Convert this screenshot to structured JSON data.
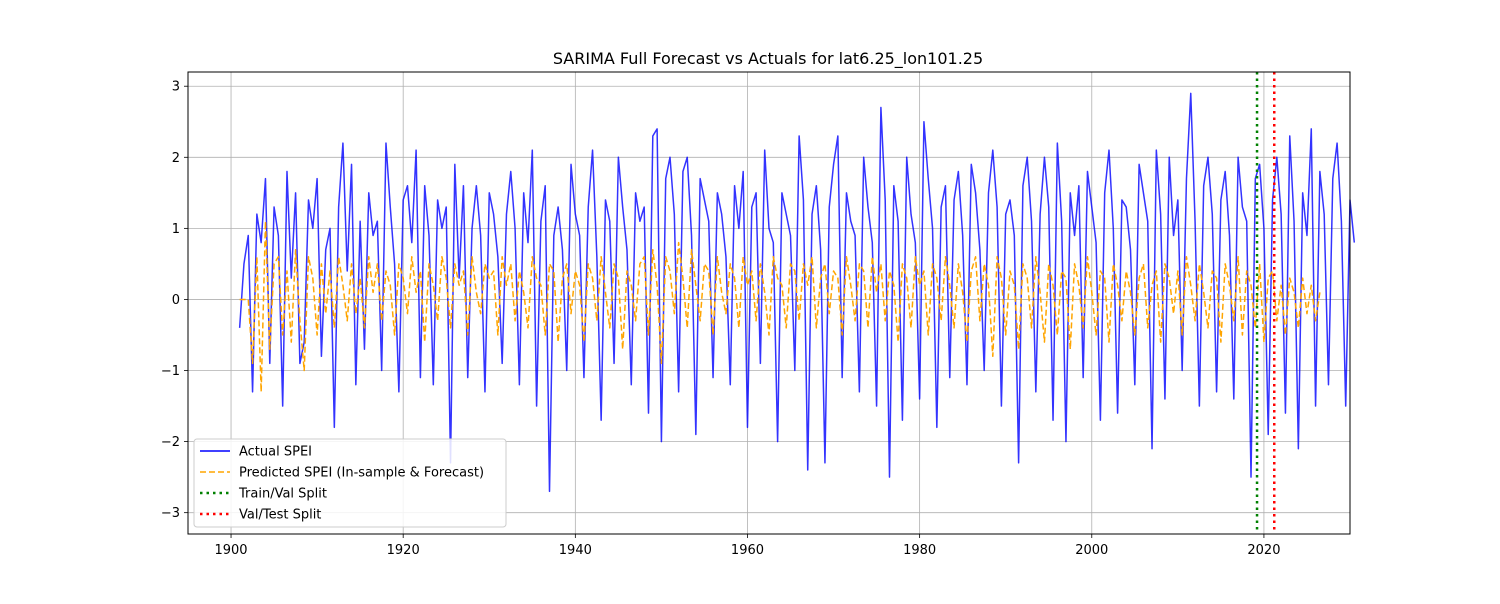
{
  "chart_data": {
    "type": "line",
    "title": "SARIMA Full Forecast vs Actuals for lat6.25_lon101.25",
    "xlabel": "",
    "ylabel": "",
    "xlim": [
      1895,
      2030
    ],
    "ylim": [
      -3.3,
      3.2
    ],
    "grid": true,
    "legend_position": "lower-left",
    "x_ticks": [
      1900,
      1920,
      1940,
      1960,
      1980,
      2000,
      2020
    ],
    "y_ticks": [
      -3,
      -2,
      -1,
      0,
      1,
      2,
      3
    ],
    "series": [
      {
        "name": "Actual SPEI",
        "style": "solid",
        "color": "#0000ff",
        "x_start": 1901.0,
        "step_years": 0.5,
        "values": [
          -0.4,
          0.5,
          0.9,
          -1.3,
          1.2,
          0.8,
          1.7,
          -0.9,
          1.3,
          0.9,
          -1.5,
          1.8,
          0.3,
          1.5,
          -0.9,
          -0.6,
          1.4,
          1.0,
          1.7,
          -0.8,
          0.7,
          1.0,
          -1.8,
          1.3,
          2.2,
          0.4,
          1.9,
          -1.2,
          1.1,
          -0.7,
          1.5,
          0.9,
          1.1,
          -1.0,
          2.2,
          1.3,
          0.5,
          -1.3,
          1.4,
          1.6,
          0.8,
          2.1,
          -1.1,
          1.6,
          0.9,
          -1.2,
          1.4,
          1.0,
          1.3,
          -2.3,
          1.9,
          0.3,
          1.6,
          -1.1,
          1.0,
          1.6,
          0.9,
          -1.3,
          1.5,
          1.2,
          0.6,
          -0.9,
          1.2,
          1.8,
          1.0,
          -1.2,
          1.5,
          0.8,
          2.1,
          -1.5,
          1.1,
          1.6,
          -2.7,
          0.9,
          1.3,
          0.7,
          -1.0,
          1.9,
          1.2,
          0.9,
          -1.1,
          1.3,
          2.1,
          0.6,
          -1.7,
          1.4,
          1.1,
          -0.9,
          2.0,
          1.3,
          0.7,
          -1.2,
          1.5,
          1.1,
          1.3,
          -1.6,
          2.3,
          2.4,
          -2.0,
          1.7,
          2.0,
          1.2,
          -1.3,
          1.8,
          2.0,
          0.9,
          -1.9,
          1.7,
          1.4,
          1.1,
          -1.1,
          1.5,
          1.2,
          0.6,
          -1.2,
          1.6,
          1.0,
          1.8,
          -1.8,
          1.3,
          1.5,
          -0.9,
          2.1,
          1.0,
          0.8,
          -2.0,
          1.5,
          1.2,
          0.9,
          -1.0,
          2.3,
          1.4,
          -2.4,
          1.2,
          1.6,
          0.7,
          -2.3,
          1.3,
          1.9,
          2.3,
          -1.1,
          1.5,
          1.1,
          0.9,
          -1.3,
          2.0,
          1.3,
          0.8,
          -1.5,
          2.7,
          1.4,
          -2.5,
          1.6,
          1.1,
          -1.7,
          2.0,
          1.2,
          0.8,
          -1.4,
          2.5,
          1.7,
          1.0,
          -1.8,
          1.3,
          1.6,
          -1.1,
          1.4,
          1.8,
          0.9,
          -1.2,
          1.9,
          1.5,
          0.7,
          -1.0,
          1.5,
          2.1,
          1.3,
          -1.5,
          1.2,
          1.4,
          0.9,
          -2.3,
          1.6,
          2.0,
          1.1,
          -1.3,
          1.2,
          2.0,
          1.3,
          -1.7,
          2.2,
          1.1,
          -2.0,
          1.5,
          0.9,
          1.6,
          -1.1,
          1.8,
          1.3,
          0.8,
          -1.7,
          1.5,
          2.1,
          1.0,
          -1.6,
          1.4,
          1.3,
          0.7,
          -1.2,
          1.9,
          1.5,
          1.1,
          -2.1,
          2.1,
          1.2,
          -1.4,
          2.0,
          0.9,
          1.4,
          -1.0,
          1.7,
          2.9,
          1.1,
          -1.5,
          1.6,
          2.0,
          1.2,
          -1.3,
          1.4,
          1.8,
          0.9,
          -1.4,
          2.0,
          1.3,
          1.1,
          -2.5,
          1.7,
          1.9,
          1.0,
          -1.9,
          1.4,
          2.0,
          1.2,
          -1.6,
          2.3,
          1.1,
          -2.1,
          1.5,
          0.9,
          2.4,
          -1.5,
          1.8,
          1.2,
          -1.2,
          1.7,
          2.2,
          1.1,
          -1.5,
          1.4,
          0.8
        ]
      },
      {
        "name": "Predicted SPEI (In-sample & Forecast)",
        "style": "dashed",
        "color": "#ffa500",
        "x_start": 1901.0,
        "step_years": 0.5,
        "values": [
          0.0,
          0.0,
          0.0,
          -0.9,
          0.6,
          -1.3,
          1.1,
          -0.7,
          0.5,
          0.6,
          -0.5,
          0.4,
          -0.6,
          0.7,
          -0.3,
          -1.0,
          0.6,
          0.3,
          -0.5,
          0.5,
          -0.2,
          0.4,
          -0.4,
          0.6,
          0.2,
          -0.3,
          0.5,
          -0.2,
          0.3,
          -0.4,
          0.6,
          0.1,
          0.5,
          -0.3,
          0.4,
          0.2,
          -0.5,
          0.5,
          0.3,
          -0.2,
          0.6,
          0.1,
          0.4,
          -0.6,
          0.5,
          0.2,
          -0.3,
          0.6,
          0.3,
          -0.4,
          0.5,
          0.2,
          0.4,
          -0.5,
          0.6,
          0.1,
          -0.2,
          0.5,
          0.3,
          0.4,
          -0.5,
          0.6,
          0.2,
          0.5,
          -0.3,
          0.4,
          0.1,
          -0.4,
          0.6,
          0.3,
          0.2,
          -0.5,
          0.5,
          0.4,
          -0.6,
          0.3,
          0.5,
          -0.2,
          0.4,
          0.2,
          -0.6,
          0.5,
          0.3,
          -0.3,
          0.6,
          0.1,
          -0.4,
          0.5,
          0.3,
          -0.7,
          0.4,
          0.2,
          -0.3,
          0.5,
          0.6,
          -0.5,
          0.7,
          0.2,
          -0.9,
          0.6,
          0.4,
          -0.2,
          0.8,
          0.3,
          -0.4,
          0.7,
          0.2,
          -0.3,
          0.5,
          0.4,
          -0.5,
          0.6,
          0.1,
          -0.2,
          0.5,
          0.3,
          -0.4,
          0.6,
          0.2,
          0.4,
          -0.3,
          0.5,
          0.1,
          -0.5,
          0.6,
          0.3,
          0.2,
          -0.4,
          0.5,
          0.4,
          -0.3,
          0.5,
          0.2,
          0.6,
          -0.4,
          0.3,
          0.5,
          -0.2,
          0.4,
          0.3,
          -0.5,
          0.6,
          0.2,
          -0.3,
          0.5,
          0.4,
          -0.4,
          0.6,
          0.1,
          0.5,
          -0.3,
          0.4,
          0.2,
          -0.6,
          0.5,
          0.3,
          -0.4,
          0.6,
          0.2,
          0.4,
          -0.5,
          0.5,
          0.3,
          -0.3,
          0.6,
          0.2,
          -0.4,
          0.5,
          0.1,
          -0.6,
          0.4,
          0.6,
          -0.3,
          0.5,
          0.2,
          -0.8,
          0.6,
          0.3,
          -0.5,
          0.4,
          0.2,
          -0.7,
          0.5,
          0.3,
          -0.4,
          0.6,
          0.1,
          -0.6,
          0.5,
          0.2,
          -0.5,
          0.4,
          0.3,
          -0.7,
          0.5,
          0.2,
          -0.4,
          0.6,
          0.1,
          -0.5,
          0.4,
          0.3,
          -0.6,
          0.5,
          0.2,
          -0.3,
          0.4,
          0.1,
          -0.5,
          0.3,
          0.5,
          -0.4,
          0.2,
          0.4,
          -0.6,
          0.5,
          0.3,
          -0.2,
          0.4,
          -0.5,
          0.6,
          0.2,
          -0.3,
          0.5,
          0.1,
          -0.4,
          0.4,
          0.3,
          -0.6,
          0.5,
          0.2,
          -0.3,
          0.6,
          -0.5,
          0.4,
          0.2,
          -0.4,
          0.5,
          -0.6,
          0.3,
          0.4,
          -0.3,
          0.2,
          -0.5,
          0.3,
          0.1,
          -0.4,
          0.3,
          -0.2,
          0.2,
          -0.3,
          0.1
        ]
      }
    ],
    "vlines": [
      {
        "name": "Train/Val Split",
        "x": 2019.2,
        "style": "dotted",
        "color": "#008000"
      },
      {
        "name": "Val/Test Split",
        "x": 2021.2,
        "style": "dotted",
        "color": "#ff0000"
      }
    ]
  }
}
